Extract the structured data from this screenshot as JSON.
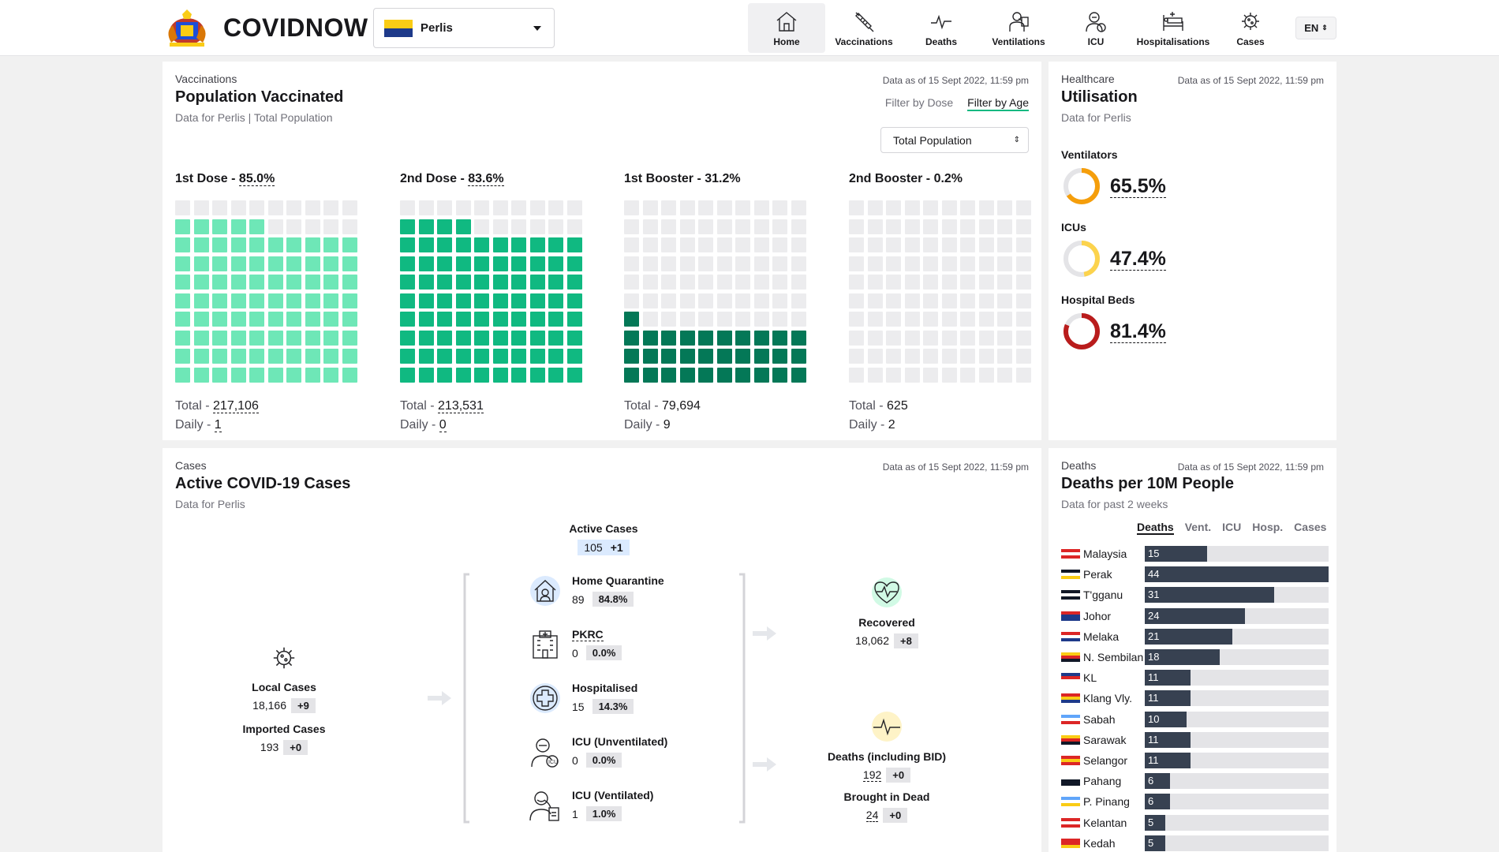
{
  "header": {
    "brand": "COVIDNOW",
    "state": "Perlis",
    "lang": "EN",
    "nav": [
      {
        "label": "Home",
        "icon": "home-icon"
      },
      {
        "label": "Vaccinations",
        "icon": "syringe-icon"
      },
      {
        "label": "Deaths",
        "icon": "pulse-icon"
      },
      {
        "label": "Ventilations",
        "icon": "ventilator-icon"
      },
      {
        "label": "ICU",
        "icon": "icu-icon"
      },
      {
        "label": "Hospitalisations",
        "icon": "hospital-bed-icon"
      },
      {
        "label": "Cases",
        "icon": "virus-icon"
      }
    ]
  },
  "vaccination": {
    "eyebrow": "Vaccinations",
    "title": "Population Vaccinated",
    "subtitle": "Data for Perlis | Total Population",
    "asof": "Data as of 15 Sept 2022, 11:59 pm",
    "filter_dose": "Filter by Dose",
    "filter_age": "Filter by Age",
    "population_select": "Total Population",
    "total_label": "Total - ",
    "daily_label": "Daily - ",
    "doses": [
      {
        "label": "1st Dose - ",
        "pct": "85.0%",
        "pct_value": 85.0,
        "total": "217,106",
        "daily": "1",
        "color": "#6ee7b7"
      },
      {
        "label": "2nd Dose - ",
        "pct": "83.6%",
        "pct_value": 83.6,
        "total": "213,531",
        "daily": "0",
        "color": "#10b981"
      },
      {
        "label": "1st Booster - ",
        "pct": "31.2%",
        "pct_value": 31.2,
        "total": "79,694",
        "daily": "9",
        "color": "#047857"
      },
      {
        "label": "2nd Booster - ",
        "pct": "0.2%",
        "pct_value": 0.2,
        "total": "625",
        "daily": "2",
        "color": "#064e3b"
      }
    ]
  },
  "utilisation": {
    "eyebrow": "Healthcare",
    "title": "Utilisation",
    "subtitle": "Data for Perlis",
    "asof": "Data as of 15 Sept 2022, 11:59 pm",
    "items": [
      {
        "label": "Ventilators",
        "value": "65.5%",
        "fraction": 0.655,
        "color": "#f59e0b"
      },
      {
        "label": "ICUs",
        "value": "47.4%",
        "fraction": 0.474,
        "color": "#fcd34d"
      },
      {
        "label": "Hospital Beds",
        "value": "81.4%",
        "fraction": 0.814,
        "color": "#b91c1c"
      }
    ]
  },
  "cases": {
    "eyebrow": "Cases",
    "title": "Active COVID-19 Cases",
    "subtitle": "Data for Perlis",
    "asof": "Data as of 15 Sept 2022, 11:59 pm",
    "active": {
      "label": "Active Cases",
      "value": "105",
      "delta": "+1"
    },
    "local": {
      "label": "Local Cases",
      "value": "18,166",
      "delta": "+9"
    },
    "imported": {
      "label": "Imported Cases",
      "value": "193",
      "delta": "+0"
    },
    "breakdown": [
      {
        "label": "Home Quarantine",
        "value": "89",
        "pct": "84.8%",
        "icon": "home-quarantine-icon"
      },
      {
        "label": "PKRC",
        "value": "0",
        "pct": "0.0%",
        "icon": "pkrc-building-icon"
      },
      {
        "label": "Hospitalised",
        "value": "15",
        "pct": "14.3%",
        "icon": "hospital-cross-icon"
      },
      {
        "label": "ICU (Unventilated)",
        "value": "0",
        "pct": "0.0%",
        "icon": "icu-patient-icon"
      },
      {
        "label": "ICU (Ventilated)",
        "value": "1",
        "pct": "1.0%",
        "icon": "ventilated-patient-icon"
      }
    ],
    "recovered": {
      "label": "Recovered",
      "value": "18,062",
      "delta": "+8"
    },
    "deaths": {
      "label": "Deaths (including BID)",
      "value": "192",
      "delta": "+0"
    },
    "bid": {
      "label": "Brought in Dead",
      "value": "24",
      "delta": "+0"
    }
  },
  "deaths_panel": {
    "eyebrow": "Deaths",
    "title": "Deaths per 10M People",
    "subtitle": "Data for past 2 weeks",
    "asof": "Data as of 15 Sept 2022, 11:59 pm",
    "tabs": [
      "Deaths",
      "Vent.",
      "ICU",
      "Hosp.",
      "Cases"
    ],
    "chart_data": {
      "type": "bar",
      "orientation": "horizontal",
      "categories": [
        "Malaysia",
        "Perak",
        "T'gganu",
        "Johor",
        "Melaka",
        "N. Sembilan",
        "KL",
        "Klang Vly.",
        "Sabah",
        "Sarawak",
        "Selangor",
        "Pahang",
        "P. Pinang",
        "Kelantan",
        "Kedah"
      ],
      "values": [
        15,
        44,
        31,
        24,
        21,
        18,
        11,
        11,
        10,
        11,
        11,
        6,
        6,
        5,
        5
      ],
      "xlim": [
        0,
        44
      ]
    }
  }
}
